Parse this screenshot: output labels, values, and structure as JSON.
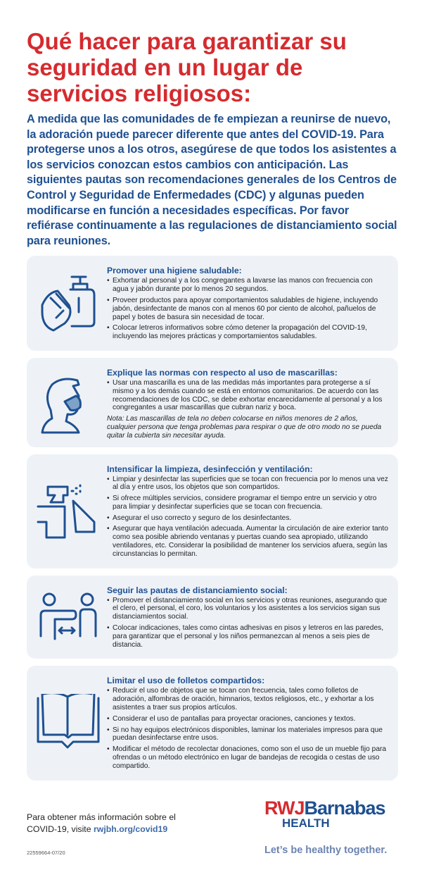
{
  "title": "Qué hacer para garantizar su seguridad en un lugar de servicios religiosos:",
  "intro": "A medida que las comunidades de fe empiezan a reunirse de nuevo, la adoración puede parecer diferente que antes del COVID-19. Para protegerse unos a los otros, asegúrese de que todos los asistentes a los servicios conozcan estos cambios con anticipación. Las siguientes pautas son recomendaciones generales de los Centros de Control y Seguridad de Enfermedades (CDC) y algunas pueden modificarse en función a necesidades específicas. Por favor refiérase continuamente a las regulaciones de distanciamiento social para reuniones.",
  "colors": {
    "title": "#d52b2f",
    "accent": "#1f5091",
    "card": "#eef2f7"
  },
  "sections": [
    {
      "icon": "hand-sanitizer-icon",
      "heading": "Promover una higiene saludable:",
      "items": [
        "Exhortar al personal y a los congregantes a lavarse las manos con frecuencia con agua y jabón durante por lo menos 20 segundos.",
        "Proveer productos para apoyar comportamientos saludables de higiene, incluyendo jabón, desinfectante de manos con al menos 60 por ciento de alcohol, pañuelos de papel y botes de basura sin necesidad de tocar.",
        "Colocar letreros informativos sobre cómo detener la propagación del COVID-19, incluyendo las mejores prácticas y comportamientos saludables."
      ]
    },
    {
      "icon": "face-mask-icon",
      "heading": "Explique las normas con respecto al uso de mascarillas:",
      "items": [
        "Usar una mascarilla es una de las medidas más importantes para protegerse a sí mismo y a los demás cuando se está en entornos comunitarios. De acuerdo con las recomendaciones de los CDC, se debe exhortar encarecidamente al personal y a los congregantes a usar mascarillas que cubran nariz y boca."
      ],
      "note": "Nota: Las mascarillas de tela no deben colocarse en niños menores de 2 años, cualquier persona que tenga problemas para respirar o que de otro modo no se pueda quitar la cubierta sin necesitar ayuda."
    },
    {
      "icon": "spray-bottle-icon",
      "heading": "Intensificar la limpieza, desinfección y ventilación:",
      "items": [
        "Limpiar y desinfectar las superficies que se tocan con frecuencia por lo menos una vez al día y entre usos, los objetos que son compartidos.",
        "Si ofrece múltiples servicios, considere programar el tiempo entre un servicio y otro para limpiar y desinfectar superficies que se tocan con frecuencia.",
        "Asegurar el uso correcto y seguro de los desinfectantes.",
        "Asegurar que haya ventilación adecuada. Aumentar la circulación de aire exterior tanto como sea posible abriendo ventanas y puertas cuando sea apropiado, utilizando ventiladores, etc. Considerar la posibilidad de mantener los servicios afuera, según las circunstancias lo permitan."
      ]
    },
    {
      "icon": "social-distance-icon",
      "heading": "Seguir las pautas de distanciamiento social:",
      "items": [
        "Promover el distanciamiento social en los servicios y otras reuniones, asegurando que el clero, el personal, el coro, los voluntarios y los asistentes a los servicios sigan sus distanciamientos social.",
        "Colocar indicaciones, tales como cintas adhesivas en pisos y letreros en las paredes, para garantizar que el personal y los niños permanezcan al menos a seis pies de distancia."
      ]
    },
    {
      "icon": "open-book-icon",
      "heading": "Limitar el uso de folletos compartidos:",
      "items": [
        "Reducir el uso de objetos que se tocan con frecuencia, tales como folletos de adoración, alfombras de oración, himnarios, textos religiosos, etc., y exhortar a los asistentes a traer sus propios artículos.",
        "Considerar el uso de pantallas para proyectar oraciones, canciones y textos.",
        "Si no hay equipos electrónicos disponibles, laminar los materiales impresos para que puedan desinfectarse entre usos.",
        "Modificar el método de recolectar donaciones, como son el uso de un mueble fijo para ofrendas o un método electrónico en lugar de bandejas de recogida o cestas de uso compartido."
      ]
    }
  ],
  "footer": {
    "text": "Para obtener más información sobre el COVID-19, visite",
    "link": "rwjbh.org/covid19",
    "code": "22559664-07/20"
  },
  "logo": {
    "rwj": "RWJ",
    "barnabas": "Barnabas",
    "health": "HEALTH",
    "tagline": "Let’s be healthy together."
  }
}
